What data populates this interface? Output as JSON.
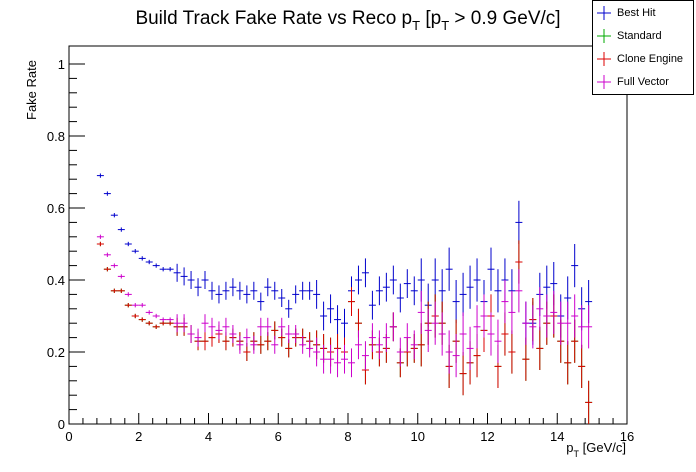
{
  "chart_data": {
    "type": "scatter",
    "title": "Build Track Fake Rate vs Reco p",
    "title_sub1": "T",
    "title_mid": " [p",
    "title_sub2": "T",
    "title_tail": " > 0.9 GeV/c]",
    "xlabel": "p",
    "xlabel_sub": "T",
    "xlabel_tail": " [GeV/c]",
    "ylabel": "Fake Rate",
    "xlim": [
      0,
      16
    ],
    "ylim": [
      0,
      1.05
    ],
    "x_ticks": [
      "0",
      "2",
      "4",
      "6",
      "8",
      "10",
      "12",
      "14",
      "16"
    ],
    "y_ticks": [
      "0",
      "0.2",
      "0.4",
      "0.6",
      "0.8",
      "1"
    ],
    "grid": false,
    "legend_position": "top-right",
    "series": [
      {
        "name": "Best Hit",
        "color": "#0000cc",
        "x": [
          0.9,
          1.1,
          1.3,
          1.5,
          1.7,
          1.9,
          2.1,
          2.3,
          2.5,
          2.7,
          2.9,
          3.1,
          3.3,
          3.5,
          3.7,
          3.9,
          4.1,
          4.3,
          4.5,
          4.7,
          4.9,
          5.1,
          5.3,
          5.5,
          5.7,
          5.9,
          6.1,
          6.3,
          6.5,
          6.7,
          6.9,
          7.1,
          7.3,
          7.5,
          7.7,
          7.9,
          8.1,
          8.3,
          8.5,
          8.7,
          8.9,
          9.1,
          9.3,
          9.5,
          9.7,
          9.9,
          10.1,
          10.3,
          10.5,
          10.7,
          10.9,
          11.1,
          11.3,
          11.5,
          11.7,
          11.9,
          12.1,
          12.3,
          12.5,
          12.7,
          12.9,
          13.1,
          13.3,
          13.5,
          13.7,
          13.9,
          14.1,
          14.3,
          14.5,
          14.7,
          14.9
        ],
        "y": [
          0.69,
          0.64,
          0.58,
          0.54,
          0.5,
          0.48,
          0.46,
          0.45,
          0.44,
          0.43,
          0.43,
          0.42,
          0.41,
          0.4,
          0.38,
          0.4,
          0.37,
          0.36,
          0.37,
          0.38,
          0.37,
          0.36,
          0.37,
          0.34,
          0.38,
          0.37,
          0.35,
          0.32,
          0.36,
          0.37,
          0.37,
          0.36,
          0.3,
          0.32,
          0.29,
          0.28,
          0.37,
          0.4,
          0.42,
          0.33,
          0.37,
          0.38,
          0.4,
          0.35,
          0.39,
          0.37,
          0.4,
          0.33,
          0.4,
          0.37,
          0.43,
          0.34,
          0.36,
          0.38,
          0.4,
          0.34,
          0.43,
          0.37,
          0.4,
          0.37,
          0.56,
          0.28,
          0.28,
          0.36,
          0.38,
          0.39,
          0.3,
          0.35,
          0.44,
          0.32,
          0.34
        ]
      },
      {
        "name": "Standard",
        "color": "#00aa00",
        "x": [
          0.9,
          1.1,
          1.3,
          1.5,
          1.7,
          1.9,
          2.1,
          2.3,
          2.5,
          2.7,
          2.9,
          3.1,
          3.3,
          3.5,
          3.7,
          3.9,
          4.1,
          4.3,
          4.5,
          4.7,
          4.9,
          5.1,
          5.3,
          5.5,
          5.7,
          5.9,
          6.1,
          6.3,
          6.5,
          6.7,
          6.9,
          7.1,
          7.3,
          7.5,
          7.7,
          7.9,
          8.1,
          8.3,
          8.5,
          8.7,
          8.9,
          9.1,
          9.3,
          9.5,
          9.7,
          9.9,
          10.1,
          10.3,
          10.5,
          10.7,
          10.9,
          11.1,
          11.3,
          11.5,
          11.7,
          11.9,
          12.1,
          12.3,
          12.5,
          12.7,
          12.9,
          13.1,
          13.3,
          13.5,
          13.7,
          13.9,
          14.1,
          14.3,
          14.5,
          14.7,
          14.9
        ],
        "y": [
          0.5,
          0.43,
          0.37,
          0.37,
          0.33,
          0.3,
          0.29,
          0.28,
          0.27,
          0.28,
          0.28,
          0.27,
          0.27,
          0.25,
          0.23,
          0.23,
          0.24,
          0.25,
          0.23,
          0.24,
          0.23,
          0.2,
          0.23,
          0.22,
          0.23,
          0.26,
          0.24,
          0.21,
          0.24,
          0.24,
          0.23,
          0.22,
          0.21,
          0.2,
          0.21,
          0.2,
          0.34,
          0.28,
          0.15,
          0.22,
          0.2,
          0.21,
          0.27,
          0.17,
          0.2,
          0.21,
          0.22,
          0.28,
          0.3,
          0.28,
          0.16,
          0.23,
          0.14,
          0.17,
          0.19,
          0.26,
          0.3,
          0.16,
          0.25,
          0.2,
          0.45,
          0.18,
          0.29,
          0.21,
          0.28,
          0.3,
          0.23,
          0.17,
          0.23,
          0.16,
          0.06
        ]
      },
      {
        "name": "Clone Engine",
        "color": "#dd0000",
        "x": [
          0.9,
          1.1,
          1.3,
          1.5,
          1.7,
          1.9,
          2.1,
          2.3,
          2.5,
          2.7,
          2.9,
          3.1,
          3.3,
          3.5,
          3.7,
          3.9,
          4.1,
          4.3,
          4.5,
          4.7,
          4.9,
          5.1,
          5.3,
          5.5,
          5.7,
          5.9,
          6.1,
          6.3,
          6.5,
          6.7,
          6.9,
          7.1,
          7.3,
          7.5,
          7.7,
          7.9,
          8.1,
          8.3,
          8.5,
          8.7,
          8.9,
          9.1,
          9.3,
          9.5,
          9.7,
          9.9,
          10.1,
          10.3,
          10.5,
          10.7,
          10.9,
          11.1,
          11.3,
          11.5,
          11.7,
          11.9,
          12.1,
          12.3,
          12.5,
          12.7,
          12.9,
          13.1,
          13.3,
          13.5,
          13.7,
          13.9,
          14.1,
          14.3,
          14.5,
          14.7,
          14.9
        ],
        "y": [
          0.5,
          0.43,
          0.37,
          0.37,
          0.33,
          0.3,
          0.29,
          0.28,
          0.27,
          0.28,
          0.28,
          0.27,
          0.27,
          0.25,
          0.23,
          0.23,
          0.24,
          0.25,
          0.23,
          0.24,
          0.23,
          0.2,
          0.23,
          0.22,
          0.23,
          0.26,
          0.24,
          0.21,
          0.24,
          0.24,
          0.23,
          0.22,
          0.21,
          0.2,
          0.21,
          0.2,
          0.34,
          0.28,
          0.15,
          0.22,
          0.2,
          0.21,
          0.27,
          0.17,
          0.2,
          0.21,
          0.22,
          0.28,
          0.3,
          0.28,
          0.16,
          0.23,
          0.14,
          0.17,
          0.19,
          0.26,
          0.3,
          0.16,
          0.25,
          0.2,
          0.45,
          0.18,
          0.29,
          0.21,
          0.28,
          0.3,
          0.23,
          0.17,
          0.23,
          0.16,
          0.06
        ]
      },
      {
        "name": "Full Vector",
        "color": "#cc00cc",
        "x": [
          0.9,
          1.1,
          1.3,
          1.5,
          1.7,
          1.9,
          2.1,
          2.3,
          2.5,
          2.7,
          2.9,
          3.1,
          3.3,
          3.5,
          3.7,
          3.9,
          4.1,
          4.3,
          4.5,
          4.7,
          4.9,
          5.1,
          5.3,
          5.5,
          5.7,
          5.9,
          6.1,
          6.3,
          6.5,
          6.7,
          6.9,
          7.1,
          7.3,
          7.5,
          7.7,
          7.9,
          8.1,
          8.3,
          8.5,
          8.7,
          8.9,
          9.1,
          9.3,
          9.5,
          9.7,
          9.9,
          10.1,
          10.3,
          10.5,
          10.7,
          10.9,
          11.1,
          11.3,
          11.5,
          11.7,
          11.9,
          12.1,
          12.3,
          12.5,
          12.7,
          12.9,
          13.1,
          13.3,
          13.5,
          13.7,
          13.9,
          14.1,
          14.3,
          14.5,
          14.7,
          14.9
        ],
        "y": [
          0.52,
          0.47,
          0.44,
          0.41,
          0.36,
          0.33,
          0.33,
          0.31,
          0.3,
          0.29,
          0.29,
          0.28,
          0.28,
          0.25,
          0.24,
          0.28,
          0.27,
          0.26,
          0.27,
          0.25,
          0.22,
          0.24,
          0.22,
          0.27,
          0.27,
          0.22,
          0.27,
          0.25,
          0.25,
          0.22,
          0.21,
          0.2,
          0.18,
          0.18,
          0.17,
          0.18,
          0.17,
          0.22,
          0.19,
          0.24,
          0.22,
          0.24,
          0.27,
          0.2,
          0.24,
          0.22,
          0.31,
          0.26,
          0.28,
          0.25,
          0.2,
          0.19,
          0.25,
          0.21,
          0.27,
          0.3,
          0.25,
          0.23,
          0.34,
          0.31,
          0.37,
          0.28,
          0.27,
          0.32,
          0.3,
          0.31,
          0.28,
          0.28,
          0.3,
          0.27,
          0.27
        ]
      }
    ]
  }
}
